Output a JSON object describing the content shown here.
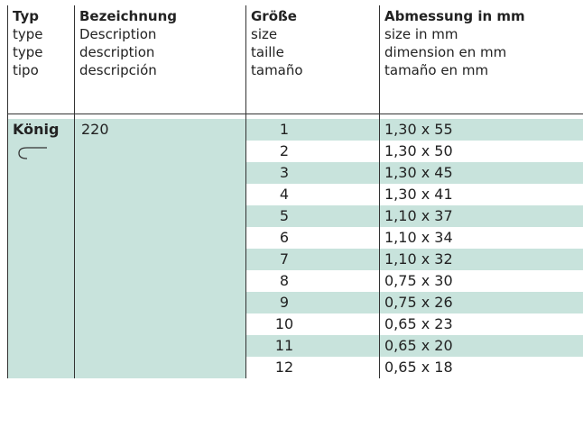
{
  "header": {
    "columns": [
      {
        "lines": [
          "Typ",
          "type",
          "type",
          "tipo"
        ]
      },
      {
        "lines": [
          "Bezeichnung",
          "Description",
          "description",
          "descripción"
        ]
      },
      {
        "lines": [
          "Größe",
          "size",
          "taille",
          "tamaño"
        ]
      },
      {
        "lines": [
          "Abmessung in mm",
          "size in mm",
          "dimension en mm",
          "tamaño en mm"
        ]
      }
    ]
  },
  "table": {
    "type": "König",
    "description": "220",
    "rows": [
      {
        "size": 1,
        "dimension": "1,30 x 55"
      },
      {
        "size": 2,
        "dimension": "1,30 x 50"
      },
      {
        "size": 3,
        "dimension": "1,30 x 45"
      },
      {
        "size": 4,
        "dimension": "1,30 x 41"
      },
      {
        "size": 5,
        "dimension": "1,10 x 37"
      },
      {
        "size": 6,
        "dimension": "1,10 x 34"
      },
      {
        "size": 7,
        "dimension": "1,10 x 32"
      },
      {
        "size": 8,
        "dimension": "0,75 x 30"
      },
      {
        "size": 9,
        "dimension": "0,75 x 26"
      },
      {
        "size": 10,
        "dimension": "0,65 x 23"
      },
      {
        "size": 11,
        "dimension": "0,65 x 20"
      },
      {
        "size": 12,
        "dimension": "0,65 x 18"
      }
    ]
  }
}
